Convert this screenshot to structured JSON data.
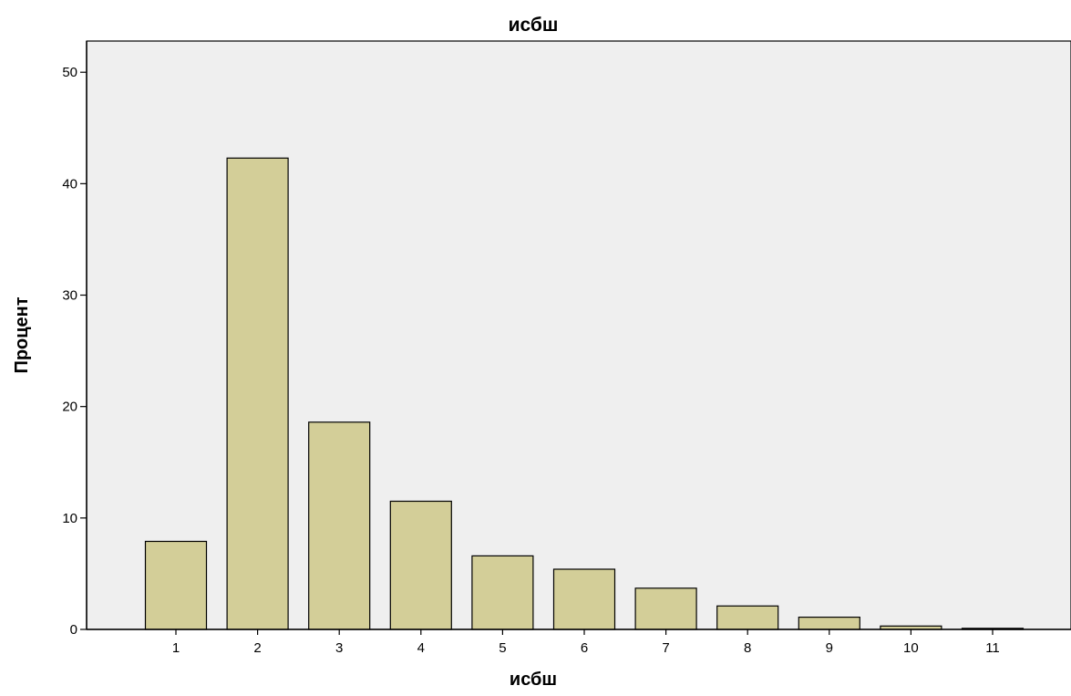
{
  "chart_data": {
    "type": "bar",
    "title": "исбш",
    "xlabel": "исбш",
    "ylabel": "Процент",
    "categories": [
      "1",
      "2",
      "3",
      "4",
      "5",
      "6",
      "7",
      "8",
      "9",
      "10",
      "11"
    ],
    "values": [
      7.9,
      42.3,
      18.6,
      11.5,
      6.6,
      5.4,
      3.7,
      2.1,
      1.1,
      0.3,
      0.1
    ],
    "ylim": [
      0,
      52.8
    ],
    "yticks": [
      "0",
      "10",
      "20",
      "30",
      "40",
      "50"
    ],
    "grid": false,
    "legend": "none",
    "colors": {
      "plot_background": "#efefef",
      "bar_fill": "#d3ce98",
      "bar_stroke": "#000000",
      "axis": "#000000"
    }
  }
}
